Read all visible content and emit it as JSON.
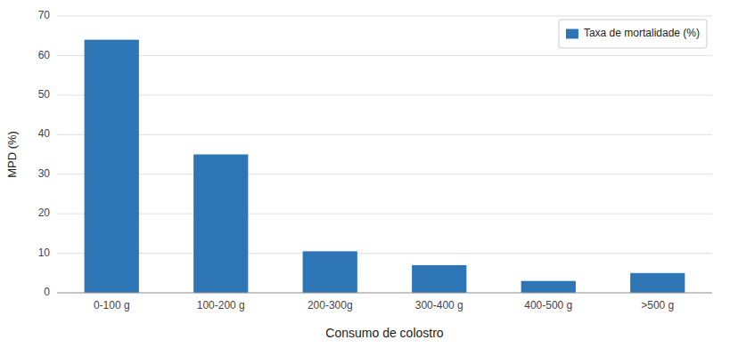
{
  "chart_data": {
    "type": "bar",
    "categories": [
      "0-100 g",
      "100-200 g",
      "200-300g",
      "300-400 g",
      "400-500 g",
      ">500 g"
    ],
    "series": [
      {
        "name": "Taxa de mortalidade (%)",
        "color": "#2E75B6",
        "values": [
          64,
          35,
          10.5,
          7,
          3,
          5
        ]
      }
    ],
    "xlabel": "Consumo de colostro",
    "ylabel": "MPD (%)",
    "ylim": [
      0,
      70
    ],
    "yticks": [
      0,
      10,
      20,
      30,
      40,
      50,
      60,
      70
    ],
    "grid": true,
    "legend": "upper right"
  }
}
